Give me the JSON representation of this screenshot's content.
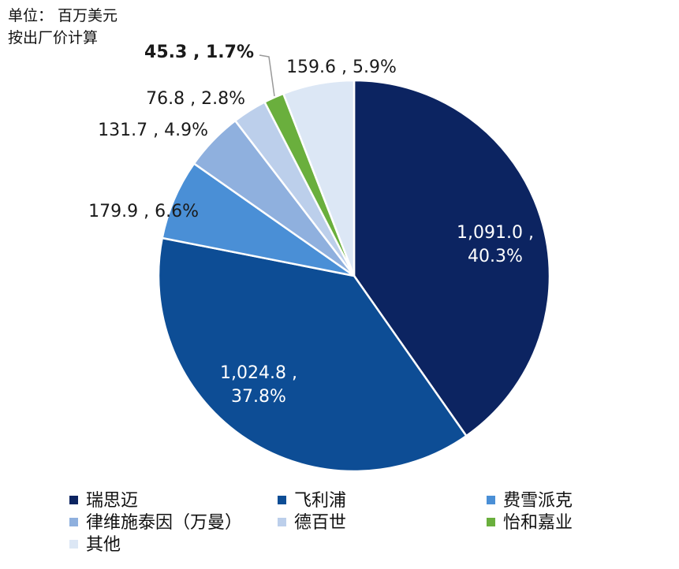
{
  "header": {
    "unit_line": "单位： 百万美元",
    "basis_line": "按出厂价计算"
  },
  "chart_data": {
    "type": "pie",
    "start_angle_deg": 0,
    "direction": "clockwise",
    "slices": [
      {
        "name": "瑞思迈",
        "value": 1091.0,
        "percent": 40.3,
        "label_lines": [
          "1,091.0 ,",
          "40.3%"
        ],
        "color": "#0c2461"
      },
      {
        "name": "飞利浦",
        "value": 1024.8,
        "percent": 37.8,
        "label_lines": [
          "1,024.8 ,",
          "37.8%"
        ],
        "color": "#0d4d95"
      },
      {
        "name": "费雪派克",
        "value": 179.9,
        "percent": 6.6,
        "label_lines": [
          "179.9 , 6.6%"
        ],
        "color": "#4a8fd6"
      },
      {
        "name": "律维施泰因（万曼）",
        "value": 131.7,
        "percent": 4.9,
        "label_lines": [
          "131.7 , 4.9%"
        ],
        "color": "#8fb0de"
      },
      {
        "name": "德百世",
        "value": 76.8,
        "percent": 2.8,
        "label_lines": [
          "76.8 , 2.8%"
        ],
        "color": "#bccfeb"
      },
      {
        "name": "怡和嘉业",
        "value": 45.3,
        "percent": 1.7,
        "label_lines": [
          "45.3 , 1.7%"
        ],
        "color": "#6aaf3d",
        "bold": true
      },
      {
        "name": "其他",
        "value": 159.6,
        "percent": 5.9,
        "label_lines": [
          "159.6 , 5.9%"
        ],
        "color": "#dce7f5"
      }
    ],
    "legend_position": "bottom"
  }
}
